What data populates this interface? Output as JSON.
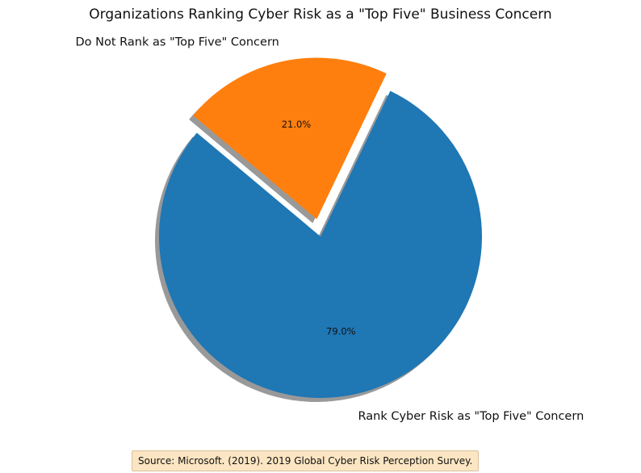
{
  "chart_data": {
    "type": "pie",
    "title": "Organizations Ranking Cyber Risk as a \"Top Five\" Business Concern",
    "slices": [
      {
        "label": "Rank Cyber Risk as \"Top Five\" Concern",
        "value": 79.0,
        "pct_label": "79.0%",
        "color": "#1f77b4",
        "exploded": false
      },
      {
        "label": "Do Not Rank as \"Top Five\" Concern",
        "value": 21.0,
        "pct_label": "21.0%",
        "color": "#ff7f0e",
        "exploded": true
      }
    ],
    "shadow": true,
    "annotation": "Source: Microsoft. (2019). 2019 Global Cyber Risk Perception Survey."
  }
}
